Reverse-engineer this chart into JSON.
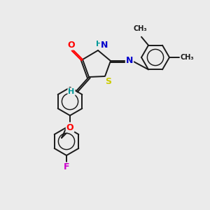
{
  "bg_color": "#ebebeb",
  "bond_color": "#1a1a1a",
  "atom_colors": {
    "O": "#ff0000",
    "N": "#0000cc",
    "S": "#cccc00",
    "F": "#cc00cc",
    "H": "#009999",
    "C": "#1a1a1a"
  },
  "figsize": [
    3.0,
    3.0
  ],
  "dpi": 100,
  "lw": 1.4,
  "ring_r": 20
}
